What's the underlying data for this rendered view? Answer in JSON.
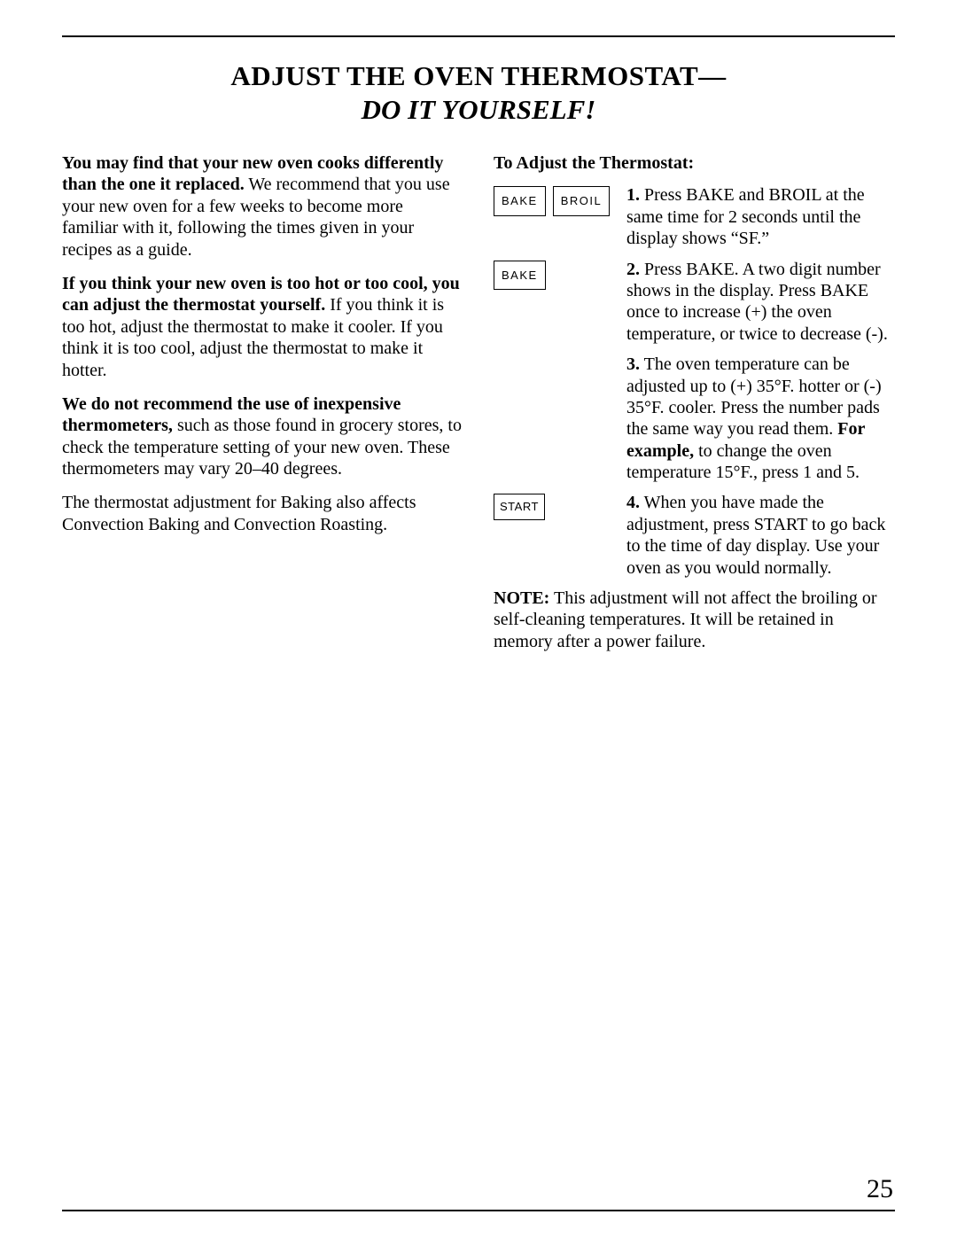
{
  "title": {
    "line1": "ADJUST THE OVEN THERMOSTAT—",
    "line2": "DO IT YOURSELF!"
  },
  "left_column": {
    "p1_bold": "You may find that your new oven cooks differently than the one it replaced.",
    "p1_rest": " We recommend that you use your new oven for a few weeks to become more familiar with it, following the times given in your recipes as a guide.",
    "p2_bold": "If you think your new oven is too hot or too cool, you can adjust the thermostat yourself.",
    "p2_rest": " If you think it is too hot, adjust the thermostat to make it cooler. If you think it is too cool, adjust the thermostat to make it hotter.",
    "p3_bold": "We do not recommend the use of inexpensive thermometers,",
    "p3_rest": " such as those found in grocery stores, to check the temperature setting of your new oven. These thermometers may vary 20–40 degrees.",
    "p4": "The thermostat adjustment for Baking also affects Convection Baking and Convection Roasting."
  },
  "right_column": {
    "heading": "To Adjust the Thermostat:",
    "buttons": {
      "bake": "BAKE",
      "broil": "BROIL",
      "start": "START"
    },
    "steps": {
      "s1_num": "1.",
      "s1_text": " Press BAKE and BROIL at the same time for 2 seconds until the display shows “SF.”",
      "s2_num": "2.",
      "s2_text": " Press BAKE. A two digit number shows in the display. Press BAKE once to increase (+) the oven temperature, or twice to decrease (-).",
      "s3_num": "3.",
      "s3_text_a": " The oven temperature can be adjusted up to (+) 35°F. hotter or (-) 35°F. cooler. Press the number pads the same way you read them. ",
      "s3_bold": "For example,",
      "s3_text_b": " to change the oven temperature 15°F., press 1 and 5.",
      "s4_num": "4.",
      "s4_text": " When you have made the adjustment, press START to go back to the time of day display. Use your oven as you would normally."
    },
    "note_bold": "NOTE:",
    "note_rest": " This adjustment will not affect the broiling or self-cleaning temperatures. It will be retained in memory after a power failure."
  },
  "page_number": "25"
}
